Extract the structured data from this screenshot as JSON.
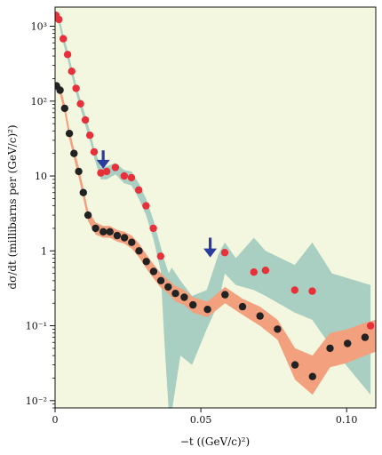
{
  "chart_data": {
    "type": "scatter",
    "xlabel": "−t ((GeV/c)²)",
    "ylabel": "dσ/dt (millibarns per (GeV/c)²)",
    "xlim": [
      0,
      0.11
    ],
    "ylim": [
      0.008,
      1800
    ],
    "yscale": "log",
    "grid": false,
    "x_ticks": [
      0,
      0.05,
      0.1
    ],
    "x_tick_labels": [
      "0",
      "0.05",
      "0.10"
    ],
    "y_ticks": [
      0.01,
      0.1,
      1,
      10,
      100,
      1000
    ],
    "y_tick_labels": [
      "10⁻²",
      "10⁻¹",
      "1",
      "10",
      "10²",
      "10³"
    ],
    "colors": {
      "background": "#f4f7df",
      "teal_band": "#a8cfc2",
      "salmon_band": "#f3a07f",
      "red_points": "#e8303a",
      "black_points": "#222222",
      "arrows": "#2a3d9e"
    },
    "series": [
      {
        "marker": "red-dot",
        "color": "#e8303a",
        "x": [
          0.0003,
          0.0013,
          0.0028,
          0.0043,
          0.0057,
          0.0072,
          0.0087,
          0.0104,
          0.0119,
          0.0134,
          0.0157,
          0.0177,
          0.0207,
          0.0237,
          0.0262,
          0.0287,
          0.0312,
          0.0337,
          0.0362,
          0.0582,
          0.0682,
          0.0722,
          0.0822,
          0.0882,
          0.1082
        ],
        "y": [
          1400,
          1230,
          680,
          420,
          250,
          148,
          92,
          56,
          35,
          21,
          11,
          11.5,
          13,
          10,
          9.5,
          6.5,
          4,
          2,
          0.85,
          0.95,
          0.52,
          0.55,
          0.3,
          0.29,
          0.1
        ]
      },
      {
        "marker": "black-dot",
        "color": "#222222",
        "x": [
          0.0005,
          0.0017,
          0.0033,
          0.0049,
          0.0065,
          0.0081,
          0.0097,
          0.0113,
          0.0139,
          0.0165,
          0.0188,
          0.0213,
          0.0238,
          0.0263,
          0.0288,
          0.0313,
          0.0338,
          0.0363,
          0.0388,
          0.0413,
          0.0443,
          0.0473,
          0.0523,
          0.0583,
          0.0643,
          0.0703,
          0.0763,
          0.0823,
          0.0883,
          0.0943,
          0.1003,
          0.1063
        ],
        "y": [
          160,
          140,
          80,
          37,
          20,
          11.5,
          6,
          3,
          2,
          1.8,
          1.8,
          1.6,
          1.5,
          1.3,
          1,
          0.72,
          0.53,
          0.4,
          0.33,
          0.27,
          0.24,
          0.19,
          0.165,
          0.26,
          0.18,
          0.135,
          0.09,
          0.03,
          0.021,
          0.05,
          0.058,
          0.07
        ]
      }
    ],
    "bands": [
      {
        "color": "#a8cfc2",
        "x": [
          0.0003,
          0.0013,
          0.0028,
          0.0043,
          0.0057,
          0.0072,
          0.0087,
          0.0104,
          0.0119,
          0.0134,
          0.0157,
          0.0177,
          0.0207,
          0.0237,
          0.0262,
          0.0287,
          0.0312,
          0.0337,
          0.0362,
          0.0375,
          0.039,
          0.04,
          0.043,
          0.047,
          0.052,
          0.056,
          0.0582,
          0.062,
          0.0682,
          0.0722,
          0.0822,
          0.0882,
          0.095,
          0.1082
        ],
        "upper": [
          1600,
          1400,
          780,
          480,
          285,
          170,
          105,
          65,
          40,
          24,
          13,
          13.5,
          15,
          12,
          11.5,
          8,
          5,
          2.6,
          1.15,
          0.75,
          0.5,
          0.6,
          0.4,
          0.25,
          0.3,
          0.9,
          1.3,
          0.8,
          1.5,
          1.0,
          0.65,
          1.3,
          0.5,
          0.35
        ],
        "lower": [
          1220,
          1080,
          590,
          360,
          215,
          128,
          79,
          47,
          30,
          17.5,
          9,
          9,
          10.5,
          8,
          7.5,
          5,
          3,
          1.45,
          0.55,
          0.06,
          0.007,
          0.007,
          0.04,
          0.03,
          0.09,
          0.2,
          0.5,
          0.35,
          0.3,
          0.25,
          0.15,
          0.12,
          0.05,
          0.012
        ]
      },
      {
        "color": "#f3a07f",
        "x": [
          0.0005,
          0.0017,
          0.0033,
          0.0049,
          0.0065,
          0.0081,
          0.0097,
          0.0113,
          0.0139,
          0.0165,
          0.0188,
          0.0213,
          0.0238,
          0.0263,
          0.0288,
          0.0313,
          0.0338,
          0.0363,
          0.0388,
          0.0413,
          0.0443,
          0.0473,
          0.0523,
          0.0583,
          0.0643,
          0.0703,
          0.0763,
          0.0823,
          0.0883,
          0.0943,
          0.1003,
          0.1063,
          0.11
        ],
        "upper": [
          180,
          160,
          92,
          43,
          23,
          13.5,
          7,
          3.5,
          2.4,
          2.15,
          2.15,
          1.9,
          1.8,
          1.6,
          1.25,
          0.9,
          0.66,
          0.5,
          0.41,
          0.34,
          0.3,
          0.24,
          0.21,
          0.33,
          0.23,
          0.18,
          0.12,
          0.05,
          0.04,
          0.08,
          0.09,
          0.11,
          0.12
        ],
        "lower": [
          140,
          120,
          68,
          31,
          17,
          9.5,
          5,
          2.5,
          1.65,
          1.5,
          1.5,
          1.33,
          1.25,
          1.07,
          0.82,
          0.58,
          0.43,
          0.32,
          0.27,
          0.21,
          0.19,
          0.15,
          0.13,
          0.2,
          0.14,
          0.1,
          0.065,
          0.019,
          0.012,
          0.028,
          0.032,
          0.04,
          0.045
        ]
      }
    ],
    "annotations": [
      {
        "type": "arrow",
        "x": 0.0165,
        "y_top": 22,
        "y_bottom": 12.5
      },
      {
        "type": "arrow",
        "x": 0.0532,
        "y_top": 1.5,
        "y_bottom": 0.82
      }
    ]
  }
}
